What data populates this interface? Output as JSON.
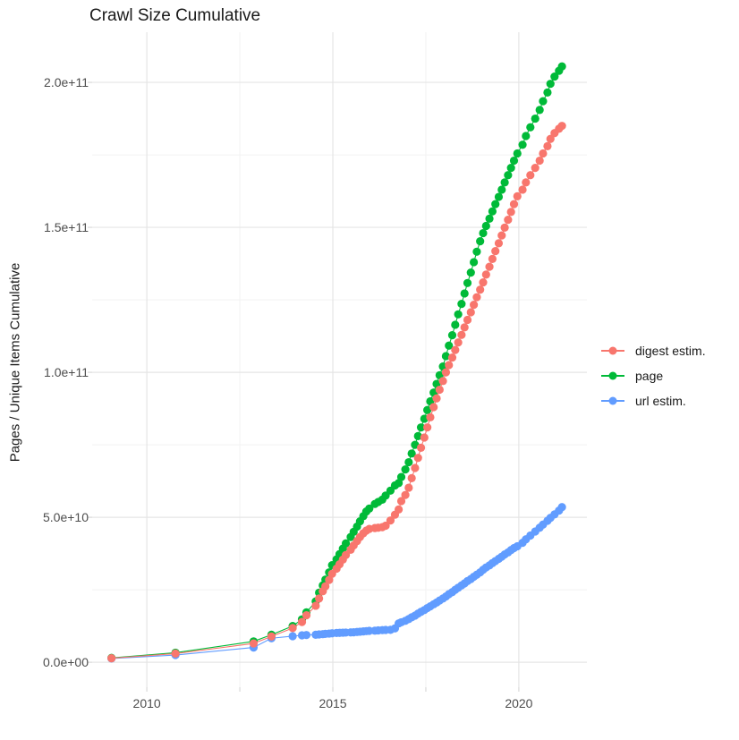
{
  "title": "Crawl Size Cumulative",
  "axes": {
    "y_label": "Pages / Unique Items Cumulative",
    "y_tick_labels": [
      "2.0e+11",
      "1.5e+11",
      "1.0e+11",
      "5.0e+10",
      "0.0e+00"
    ],
    "x_tick_labels": [
      "2010",
      "2015",
      "2020"
    ]
  },
  "legend": {
    "entries": [
      {
        "label": "digest estim.",
        "color": "#F8766D"
      },
      {
        "label": "page",
        "color": "#00BA38"
      },
      {
        "label": "url estim.",
        "color": "#619CFF"
      }
    ]
  },
  "chart_data": {
    "type": "scatter",
    "title": "Crawl Size Cumulative",
    "xlabel": "",
    "ylabel": "Pages / Unique Items Cumulative",
    "value_unit": "1e9 (billions of pages / items)",
    "xlim": [
      2008.53,
      2021.83
    ],
    "ylim_e9": [
      -8.6,
      217.3
    ],
    "grid": true,
    "legend_position": "right",
    "x_major": [
      2010,
      2015,
      2020
    ],
    "x_minor": [
      2012.5,
      2017.5
    ],
    "y_major_e9": [
      0,
      50,
      100,
      150,
      200
    ],
    "y_minor_e9": [
      25,
      75,
      125,
      175
    ],
    "x": [
      2009.05,
      2010.77,
      2012.87,
      2013.35,
      2013.92,
      2014.17,
      2014.29,
      2014.54,
      2014.63,
      2014.73,
      2014.8,
      2014.9,
      2014.98,
      2015.1,
      2015.18,
      2015.27,
      2015.35,
      2015.48,
      2015.56,
      2015.65,
      2015.73,
      2015.82,
      2015.9,
      2015.98,
      2016.13,
      2016.22,
      2016.33,
      2016.42,
      2016.55,
      2016.67,
      2016.77,
      2016.84,
      2016.95,
      2017.04,
      2017.12,
      2017.21,
      2017.29,
      2017.37,
      2017.46,
      2017.54,
      2017.62,
      2017.71,
      2017.79,
      2017.87,
      2017.96,
      2018.04,
      2018.12,
      2018.21,
      2018.29,
      2018.37,
      2018.46,
      2018.54,
      2018.62,
      2018.71,
      2018.79,
      2018.87,
      2018.96,
      2019.04,
      2019.12,
      2019.21,
      2019.29,
      2019.37,
      2019.46,
      2019.54,
      2019.62,
      2019.71,
      2019.79,
      2019.87,
      2019.96,
      2020.1,
      2020.19,
      2020.31,
      2020.44,
      2020.56,
      2020.65,
      2020.77,
      2020.85,
      2020.96,
      2021.08,
      2021.16
    ],
    "series": [
      {
        "name": "digest estim.",
        "color": "#F8766D",
        "z": 3,
        "values_e9": [
          1.4,
          3.0,
          6.5,
          8.9,
          11.8,
          13.9,
          16.2,
          19.5,
          22.0,
          24.5,
          26.2,
          28.4,
          30.5,
          32.3,
          33.8,
          35.4,
          37.0,
          38.8,
          40.3,
          41.8,
          43.2,
          44.5,
          45.4,
          46.0,
          46.3,
          46.4,
          46.6,
          47.1,
          48.9,
          50.9,
          52.7,
          55.6,
          57.7,
          60.2,
          63.5,
          67.0,
          70.5,
          74.0,
          77.5,
          81.0,
          84.5,
          88.0,
          91.0,
          94.0,
          97.0,
          100.0,
          102.5,
          105.1,
          107.7,
          110.3,
          112.9,
          115.5,
          118.1,
          120.7,
          123.3,
          125.9,
          128.5,
          131.0,
          133.7,
          136.4,
          139.1,
          141.8,
          144.5,
          147.2,
          149.9,
          152.6,
          155.3,
          158.0,
          160.7,
          163.0,
          165.5,
          168.0,
          170.5,
          173.0,
          175.5,
          178.0,
          180.5,
          182.5,
          184.0,
          185.0
        ]
      },
      {
        "name": "page",
        "color": "#00BA38",
        "z": 1,
        "values_e9": [
          1.5,
          3.3,
          7.2,
          9.5,
          12.5,
          14.8,
          17.2,
          21.0,
          24.0,
          26.5,
          28.5,
          31.0,
          33.5,
          35.5,
          37.3,
          39.2,
          41.0,
          43.2,
          45.0,
          46.8,
          48.6,
          50.4,
          52.0,
          53.0,
          54.6,
          55.3,
          56.1,
          57.5,
          59.2,
          61.0,
          61.8,
          63.9,
          66.5,
          69.0,
          72.0,
          75.0,
          78.0,
          81.0,
          84.0,
          87.0,
          90.0,
          93.0,
          96.0,
          99.0,
          102.0,
          105.6,
          109.2,
          112.8,
          116.4,
          120.0,
          123.6,
          127.2,
          130.8,
          134.4,
          138.0,
          141.6,
          145.2,
          148.0,
          150.5,
          153.0,
          155.5,
          158.0,
          160.5,
          163.0,
          165.5,
          168.0,
          170.5,
          173.0,
          175.5,
          178.5,
          181.5,
          184.5,
          187.5,
          190.5,
          193.5,
          196.5,
          199.5,
          202.0,
          204.0,
          205.5
        ]
      },
      {
        "name": "url estim.",
        "color": "#619CFF",
        "z": 2,
        "values_e9": [
          1.3,
          2.5,
          5.1,
          8.3,
          9.0,
          9.3,
          9.4,
          9.5,
          9.6,
          9.7,
          9.8,
          9.9,
          10.0,
          10.1,
          10.15,
          10.2,
          10.25,
          10.3,
          10.35,
          10.45,
          10.55,
          10.65,
          10.75,
          10.85,
          10.9,
          11.0,
          11.1,
          11.15,
          11.2,
          11.7,
          13.4,
          13.8,
          14.3,
          14.9,
          15.5,
          16.1,
          16.8,
          17.4,
          18.0,
          18.7,
          19.3,
          20.0,
          20.6,
          21.3,
          22.0,
          22.7,
          23.5,
          24.2,
          25.0,
          25.7,
          26.5,
          27.2,
          28.0,
          28.7,
          29.5,
          30.2,
          31.0,
          31.9,
          32.7,
          33.4,
          34.2,
          34.9,
          35.7,
          36.4,
          37.2,
          37.9,
          38.7,
          39.4,
          40.0,
          41.2,
          42.4,
          43.7,
          45.1,
          46.4,
          47.5,
          48.8,
          49.8,
          51.0,
          52.3,
          53.5
        ]
      }
    ]
  }
}
